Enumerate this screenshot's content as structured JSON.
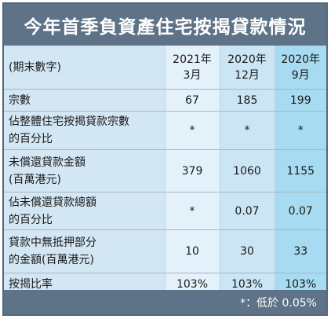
{
  "title": "今年首季負資產住宅按揭貸款情況",
  "header": {
    "label": "(期末數字)",
    "columns": [
      {
        "line1": "2021年",
        "line2": "3月"
      },
      {
        "line1": "2020年",
        "line2": "12月"
      },
      {
        "line1": "2020年",
        "line2": "9月"
      }
    ]
  },
  "rows": [
    {
      "label_line1": "宗數",
      "label_line2": "",
      "values": [
        "67",
        "185",
        "199"
      ]
    },
    {
      "label_line1": "佔整體住宅按揭貸款宗數",
      "label_line2": "的百分比",
      "values": [
        "*",
        "*",
        "*"
      ]
    },
    {
      "label_line1": "未償還貸款金額",
      "label_line2": "(百萬港元)",
      "values": [
        "379",
        "1060",
        "1155"
      ]
    },
    {
      "label_line1": "佔未償還貸款總額",
      "label_line2": "的百分比",
      "values": [
        "*",
        "0.07",
        "0.07"
      ]
    },
    {
      "label_line1": "貸款中無抵押部分",
      "label_line2": "的金額(百萬港元)",
      "values": [
        "10",
        "30",
        "33"
      ]
    },
    {
      "label_line1": "按揭比率",
      "label_line2": "",
      "values": [
        "103%",
        "103%",
        "103%"
      ]
    }
  ],
  "footnote": "*：低於 0.05%"
}
